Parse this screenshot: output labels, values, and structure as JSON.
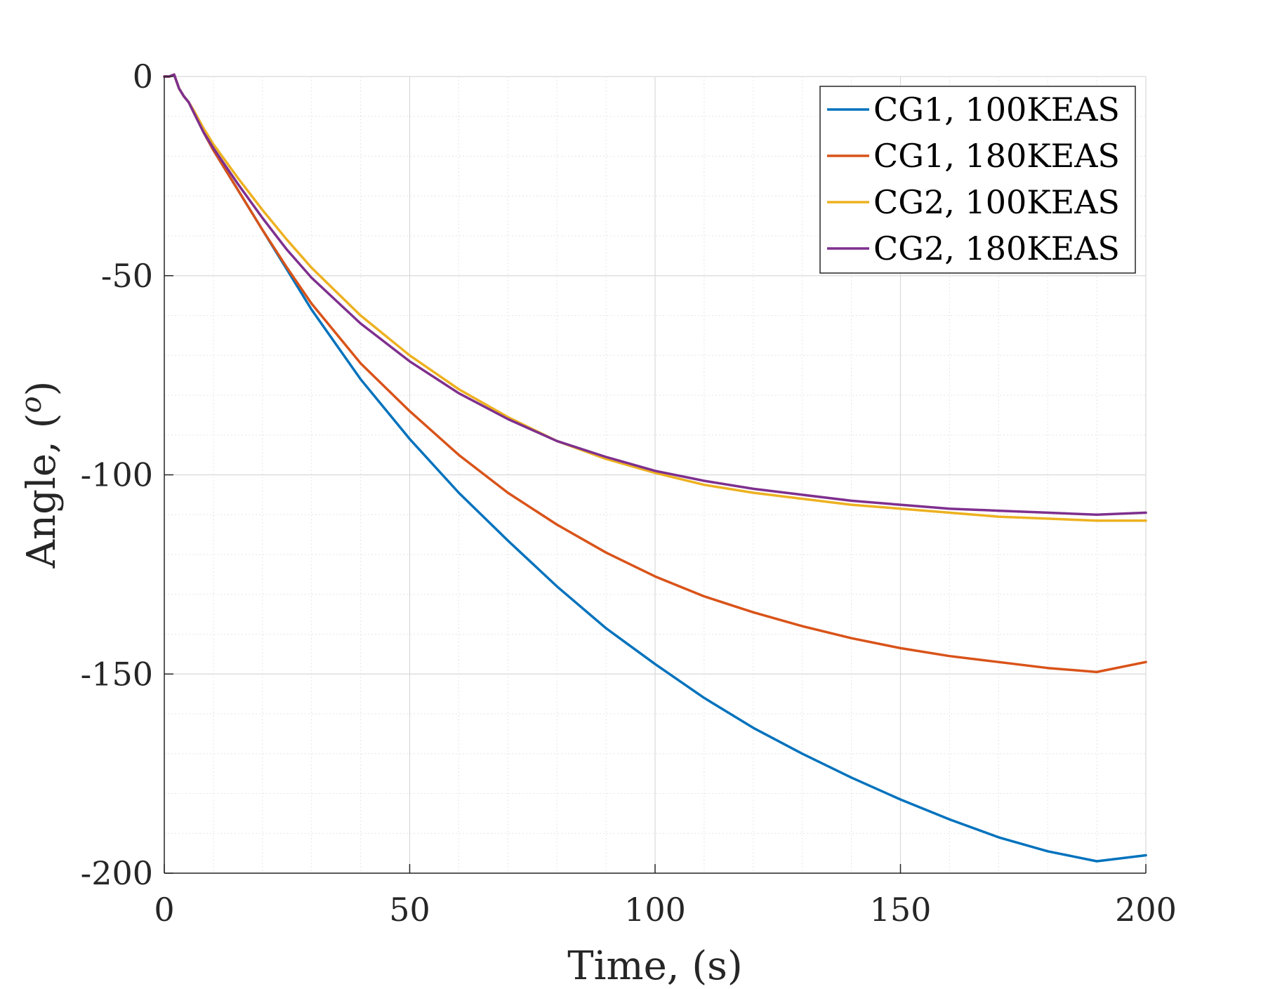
{
  "chart_data": {
    "type": "line",
    "xlabel": "Time, (s)",
    "ylabel": "Angle, (",
    "ylabel_sup": "o",
    "ylabel_close": ")",
    "xlim": [
      0,
      200
    ],
    "ylim": [
      -200,
      0
    ],
    "xticks": [
      0,
      50,
      100,
      150,
      200
    ],
    "yticks": [
      0,
      -50,
      -100,
      -150,
      -200
    ],
    "xtick_labels": [
      "0",
      "50",
      "100",
      "150",
      "200"
    ],
    "ytick_labels": [
      "0",
      "-50",
      "-100",
      "-150",
      "-200"
    ],
    "grid": true,
    "minor_grid": true,
    "legend_position": "top-right",
    "series": [
      {
        "name": "CG1, 100KEAS",
        "color": "#0072BD",
        "x": [
          0,
          1,
          2,
          3,
          4,
          5,
          6,
          8,
          10,
          15,
          20,
          25,
          30,
          40,
          50,
          60,
          70,
          80,
          90,
          100,
          110,
          120,
          130,
          140,
          150,
          160,
          170,
          180,
          190,
          200
        ],
        "y": [
          0,
          0,
          0.5,
          -3,
          -5,
          -6.5,
          -9,
          -14,
          -18.5,
          -28.5,
          -38.5,
          -48.5,
          -58.5,
          -76,
          -91,
          -104.5,
          -116.5,
          -128,
          -138.5,
          -147.5,
          -156,
          -163.5,
          -170,
          -176,
          -181.5,
          -186.5,
          -191,
          -194.5,
          -197,
          -195.5
        ]
      },
      {
        "name": "CG1, 180KEAS",
        "color": "#D95319",
        "x": [
          0,
          1,
          2,
          3,
          4,
          5,
          6,
          8,
          10,
          15,
          20,
          25,
          30,
          40,
          50,
          60,
          70,
          80,
          90,
          100,
          110,
          120,
          130,
          140,
          150,
          160,
          170,
          180,
          190,
          200
        ],
        "y": [
          0,
          0,
          0.5,
          -3,
          -5,
          -6.5,
          -9,
          -14,
          -18.5,
          -28.5,
          -38.5,
          -48,
          -57,
          -72,
          -84,
          -95,
          -104.5,
          -112.5,
          -119.5,
          -125.5,
          -130.5,
          -134.5,
          -138,
          -141,
          -143.5,
          -145.5,
          -147,
          -148.5,
          -149.5,
          -147
        ]
      },
      {
        "name": "CG2, 100KEAS",
        "color": "#EDB120",
        "x": [
          0,
          1,
          2,
          3,
          4,
          5,
          6,
          8,
          10,
          15,
          20,
          25,
          30,
          40,
          50,
          60,
          70,
          80,
          90,
          100,
          110,
          120,
          130,
          140,
          150,
          160,
          170,
          180,
          190,
          200
        ],
        "y": [
          0,
          0,
          0.5,
          -3,
          -5,
          -6.5,
          -8.5,
          -13,
          -17,
          -25.5,
          -33.5,
          -41,
          -48,
          -60,
          -70,
          -78.5,
          -85.5,
          -91.5,
          -96,
          -99.5,
          -102.5,
          -104.5,
          -106,
          -107.5,
          -108.5,
          -109.5,
          -110.5,
          -111,
          -111.5,
          -111.5
        ]
      },
      {
        "name": "CG2, 180KEAS",
        "color": "#7E2F8E",
        "x": [
          0,
          1,
          2,
          3,
          4,
          5,
          6,
          8,
          10,
          15,
          20,
          25,
          30,
          40,
          50,
          60,
          70,
          80,
          90,
          100,
          110,
          120,
          130,
          140,
          150,
          160,
          170,
          180,
          190,
          200
        ],
        "y": [
          0,
          0,
          0.5,
          -3,
          -5,
          -6.5,
          -9,
          -14,
          -18,
          -27,
          -35.5,
          -43.5,
          -50.5,
          -62,
          -71.5,
          -79.5,
          -86,
          -91.5,
          -95.5,
          -99,
          -101.5,
          -103.5,
          -105,
          -106.5,
          -107.5,
          -108.5,
          -109,
          -109.5,
          -110,
          -109.5
        ]
      }
    ]
  }
}
